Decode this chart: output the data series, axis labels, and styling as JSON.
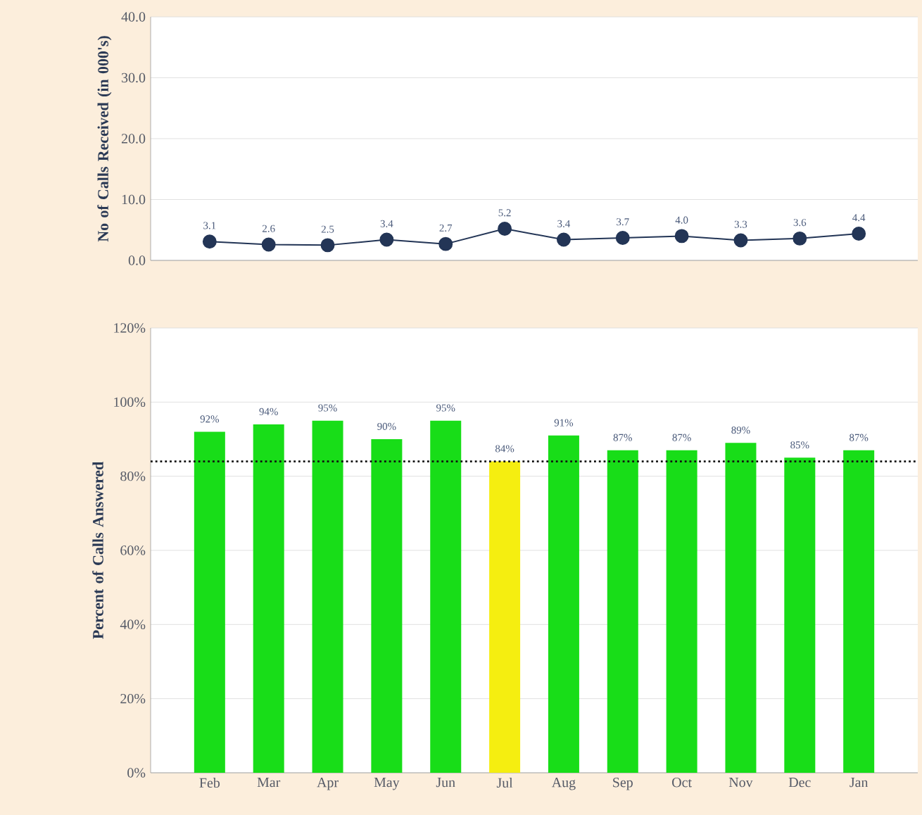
{
  "chart_data": [
    {
      "type": "line",
      "ylabel": "No of Calls Received (in 000's)",
      "categories": [
        null,
        null,
        null,
        null,
        null,
        null,
        null,
        null,
        null,
        null,
        null,
        null
      ],
      "values": [
        3.1,
        2.6,
        2.5,
        3.4,
        2.7,
        5.2,
        3.4,
        3.7,
        4.0,
        3.3,
        3.6,
        4.4
      ],
      "value_labels": [
        "3.1",
        "2.6",
        "2.5",
        "3.4",
        "2.7",
        "5.2",
        "3.4",
        "3.7",
        "4.0",
        "3.3",
        "3.6",
        "4.4"
      ],
      "color": "#233556",
      "marker": "circle",
      "line_style": "solid",
      "ylim": [
        0,
        40
      ],
      "yticks": [
        {
          "value": 0,
          "label": "0.0"
        },
        {
          "value": 10,
          "label": "10.0"
        },
        {
          "value": 20,
          "label": "20.0"
        },
        {
          "value": 30,
          "label": "30.0"
        },
        {
          "value": 40,
          "label": "40.0"
        }
      ],
      "grid": "y",
      "tick_labels": "y"
    },
    {
      "type": "bar",
      "ylabel": "Percent of Calls Answered",
      "categories": [
        "Feb",
        "Mar",
        "Apr",
        "May",
        "Jun",
        "Jul",
        "Aug",
        "Sep",
        "Oct",
        "Nov",
        "Dec",
        "Jan"
      ],
      "values": [
        92,
        94,
        95,
        90,
        95,
        84,
        91,
        87,
        87,
        89,
        85,
        87
      ],
      "value_labels": [
        "92%",
        "94%",
        "95%",
        "90%",
        "95%",
        "84%",
        "91%",
        "87%",
        "87%",
        "89%",
        "85%",
        "87%"
      ],
      "colors": [
        "#18dd18",
        "#18dd18",
        "#18dd18",
        "#18dd18",
        "#18dd18",
        "#f5ee10",
        "#18dd18",
        "#18dd18",
        "#18dd18",
        "#18dd18",
        "#18dd18",
        "#18dd18"
      ],
      "ylim": [
        0,
        120
      ],
      "yticks": [
        {
          "value": 0,
          "label": "0%"
        },
        {
          "value": 20,
          "label": "20%"
        },
        {
          "value": 40,
          "label": "40%"
        },
        {
          "value": 60,
          "label": "60%"
        },
        {
          "value": 80,
          "label": "80%"
        },
        {
          "value": 100,
          "label": "100%"
        },
        {
          "value": 120,
          "label": "120%"
        }
      ],
      "ref_lines": [
        {
          "axis": "y",
          "value": 84,
          "color": "#111111",
          "line_style": "dotted"
        }
      ],
      "grid": "y"
    }
  ]
}
